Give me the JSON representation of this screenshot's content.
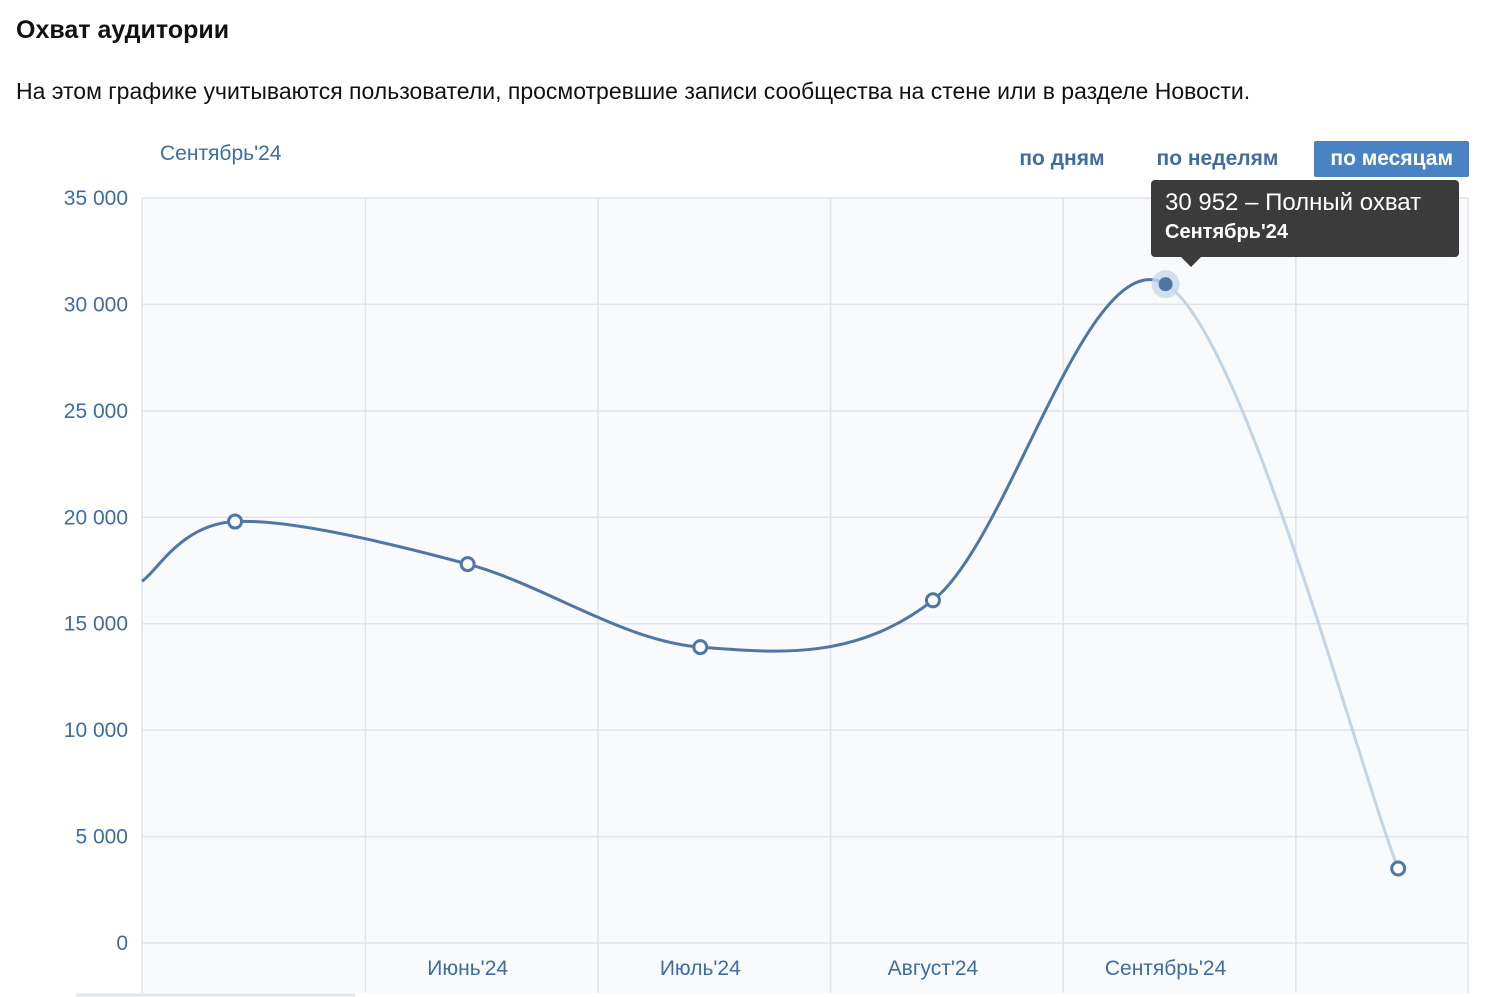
{
  "header": {
    "title": "Охват аудитории",
    "description": "На этом графике учитываются пользователи, просмотревшие записи сообщества на стене или в разделе Новости.",
    "period": "Сентябрь'24"
  },
  "tabs": [
    {
      "label": "по дням",
      "active": false
    },
    {
      "label": "по неделям",
      "active": false
    },
    {
      "label": "по месяцам",
      "active": true
    }
  ],
  "tooltip": {
    "main": "30 952 – Полный охват",
    "sub": "Сентябрь'24"
  },
  "colors": {
    "line": "#4f77a3",
    "line_faded": "#c3d4e5",
    "grid": "#dfe5ec",
    "plot_bg": "#f8fafc",
    "axis_text": "#3f6d9e",
    "active_tab": "#4a83c4"
  },
  "chart_data": {
    "type": "line",
    "x_tick_labels": [
      "Июнь'24",
      "Июль'24",
      "Август'24",
      "Сентябрь'24"
    ],
    "y_tick_labels": [
      "0",
      "5 000",
      "10 000",
      "15 000",
      "20 000",
      "25 000",
      "30 000",
      "35 000"
    ],
    "ylim": [
      0,
      35000
    ],
    "grid": true,
    "series": [
      {
        "points": [
          {
            "x": 0.4,
            "y": 19800
          },
          {
            "x": 1.4,
            "y": 17800
          },
          {
            "x": 2.4,
            "y": 13900
          },
          {
            "x": 3.4,
            "y": 16100
          },
          {
            "x": 4.4,
            "y": 30952
          },
          {
            "x": 5.4,
            "y": 3500
          }
        ],
        "highlighted_index": 4,
        "faded_segment_from_index": 4
      }
    ]
  }
}
